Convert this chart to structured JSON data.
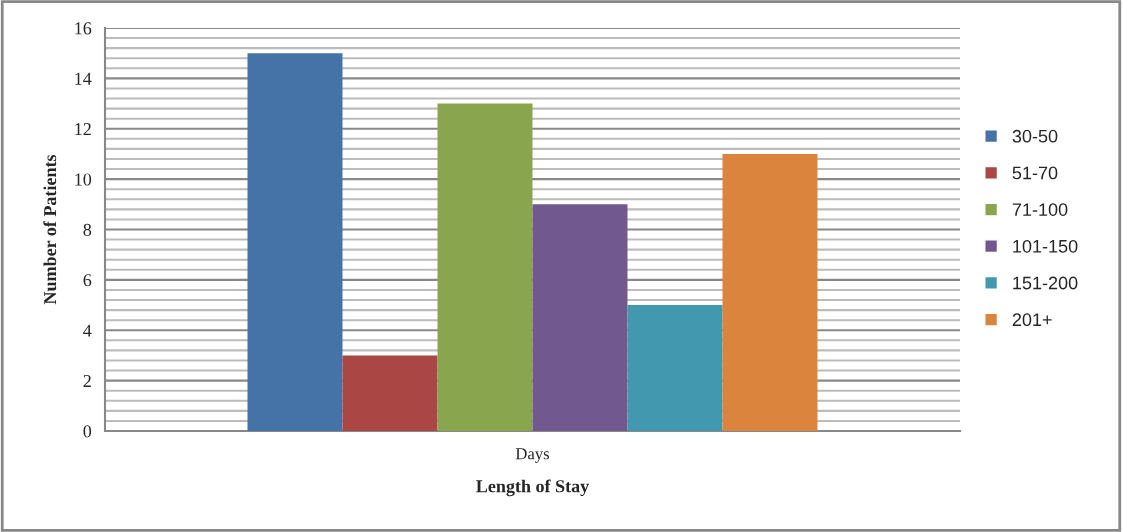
{
  "chart_data": {
    "type": "bar",
    "xlabel": "Length of Stay",
    "ylabel": "Number of Patients",
    "categories": [
      "Days"
    ],
    "series": [
      {
        "name": "30-50",
        "color": "#4572a7",
        "values": [
          15
        ]
      },
      {
        "name": "51-70",
        "color": "#aa4643",
        "values": [
          3
        ]
      },
      {
        "name": "71-100",
        "color": "#89a54e",
        "values": [
          13
        ]
      },
      {
        "name": "101-150",
        "color": "#71588f",
        "values": [
          9
        ]
      },
      {
        "name": "151-200",
        "color": "#4198af",
        "values": [
          5
        ]
      },
      {
        "name": "201+",
        "color": "#db843d",
        "values": [
          11
        ]
      }
    ],
    "ylim": [
      0,
      16
    ],
    "yticks": [
      0,
      2,
      4,
      6,
      8,
      10,
      12,
      14,
      16
    ],
    "grid": "y",
    "legend": "right"
  }
}
